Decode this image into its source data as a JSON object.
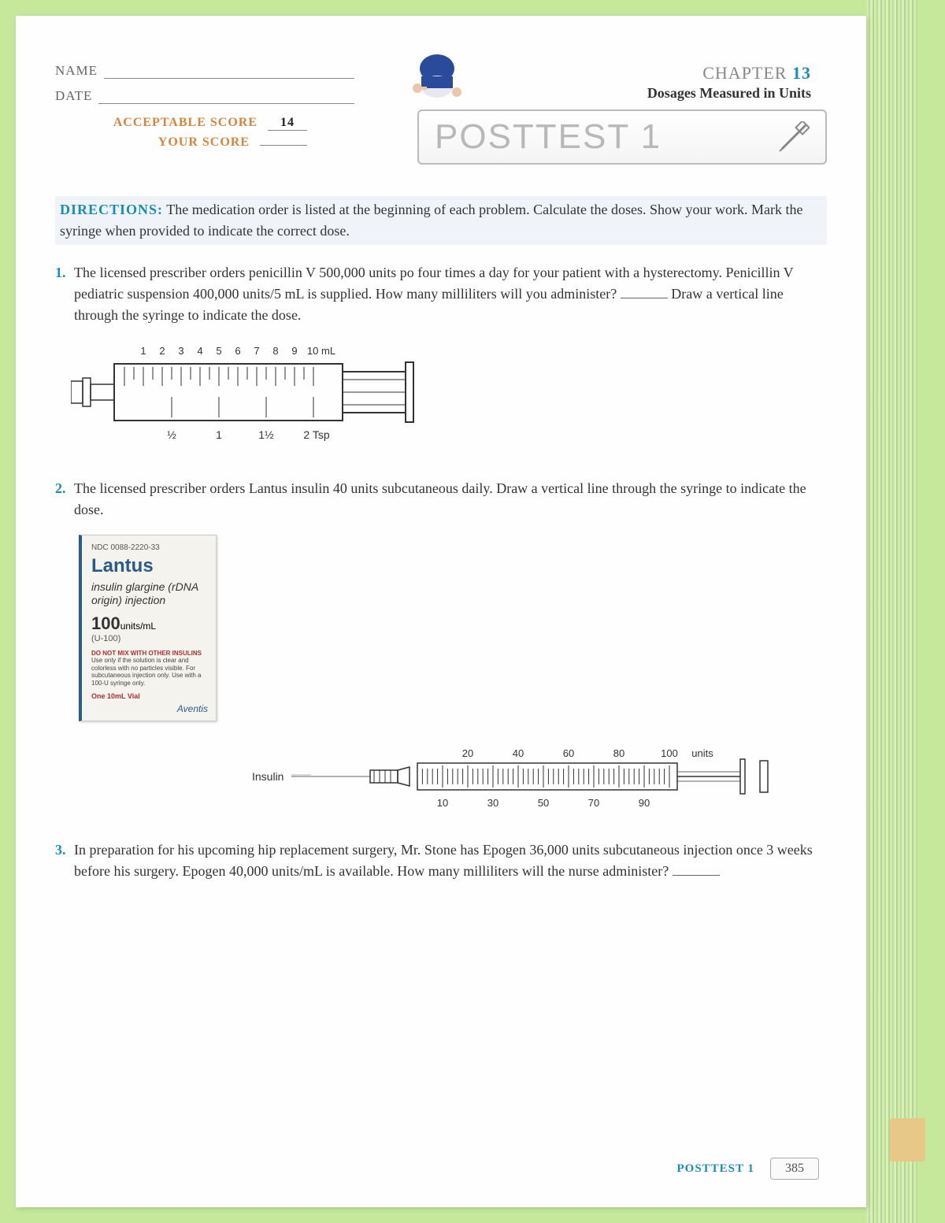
{
  "header": {
    "name_label": "NAME",
    "date_label": "DATE",
    "acceptable_label": "ACCEPTABLE SCORE",
    "acceptable_value": "14",
    "your_label": "YOUR SCORE",
    "chapter_word": "CHAPTER",
    "chapter_num": "13",
    "subtitle": "Dosages Measured in Units",
    "posttest_title": "POSTTEST 1"
  },
  "directions": {
    "label": "DIRECTIONS:",
    "text": "The medication order is listed at the beginning of each problem. Calculate the doses. Show your work. Mark the syringe when provided to indicate the correct dose."
  },
  "problems": {
    "p1": {
      "num": "1.",
      "text_a": "The licensed prescriber orders penicillin V 500,000 units po four times a day for your patient with a hysterectomy. Penicillin V pediatric suspension 400,000 units/5 mL is supplied. How many milliliters will you administer?",
      "text_b": "Draw a vertical line through the syringe to indicate the dose."
    },
    "p2": {
      "num": "2.",
      "text": "The licensed prescriber orders Lantus insulin 40 units subcutaneous daily. Draw a vertical line through the syringe to indicate the dose."
    },
    "p3": {
      "num": "3.",
      "text": "In preparation for his upcoming hip replacement surgery, Mr. Stone has Epogen 36,000 units subcutaneous injection once 3 weeks before his surgery. Epogen 40,000 units/mL is available. How many milliliters will the nurse administer?"
    }
  },
  "syringe1": {
    "top_ticks": [
      "1",
      "2",
      "3",
      "4",
      "5",
      "6",
      "7",
      "8",
      "9",
      "10 mL"
    ],
    "bottom_ticks": [
      "½",
      "1",
      "1½",
      "2 Tsp"
    ]
  },
  "lantus": {
    "ndc": "NDC 0088-2220-33",
    "brand": "Lantus",
    "generic": "insulin glargine (rDNA origin) injection",
    "strength_num": "100",
    "strength_unit": "units/mL",
    "u100": "(U-100)",
    "warn_title": "DO NOT MIX WITH OTHER INSULINS",
    "warn_body": "Use only if the solution is clear and colorless with no particles visible. For subcutaneous injection only. Use with a 100-U syringe only.",
    "one": "One 10mL Vial",
    "mfr": "Aventis"
  },
  "insulin_syringe": {
    "label": "Insulin",
    "top_ticks": [
      "20",
      "40",
      "60",
      "80",
      "100",
      "units"
    ],
    "bottom_ticks": [
      "10",
      "30",
      "50",
      "70",
      "90"
    ]
  },
  "footer": {
    "label": "POSTTEST 1",
    "page": "385"
  },
  "colors": {
    "accent_orange": "#d9843b",
    "accent_blue": "#1a8cb8",
    "page_bg": "#fefefe",
    "outer_bg": "#c5e89b"
  }
}
